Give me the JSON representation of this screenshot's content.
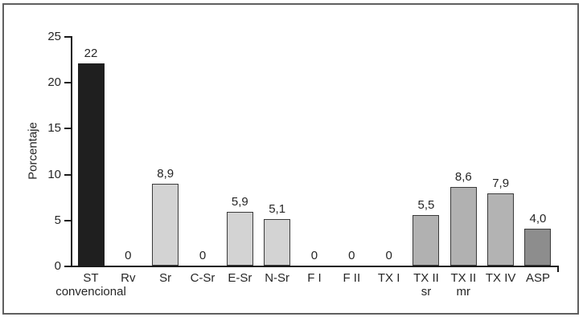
{
  "figure": {
    "background_color": "#ffffff",
    "frame_border_color": "#5f5f5f",
    "axis_color": "#1a1a1a",
    "text_color": "#262626"
  },
  "chart_data": {
    "type": "bar",
    "title": "",
    "xlabel": "",
    "ylabel": "Porcentaje",
    "ylim": [
      0,
      25
    ],
    "yticks": [
      "0",
      "5",
      "10",
      "15",
      "20",
      "25"
    ],
    "ytick_values": [
      0,
      5,
      10,
      15,
      20,
      25
    ],
    "grid": false,
    "legend_position": "none",
    "decimal_separator": ",",
    "categories": [
      {
        "label_lines": [
          "ST",
          "convencional"
        ],
        "value": 22,
        "value_label": "22",
        "fill": "#1f1f1f",
        "border": "#1f1f1f"
      },
      {
        "label_lines": [
          "Rv"
        ],
        "value": 0,
        "value_label": "0",
        "fill": null,
        "border": null
      },
      {
        "label_lines": [
          "Sr"
        ],
        "value": 8.9,
        "value_label": "8,9",
        "fill": "#d3d3d3",
        "border": "#3b3b3b"
      },
      {
        "label_lines": [
          "C-Sr"
        ],
        "value": 0,
        "value_label": "0",
        "fill": null,
        "border": null
      },
      {
        "label_lines": [
          "E-Sr"
        ],
        "value": 5.9,
        "value_label": "5,9",
        "fill": "#d3d3d3",
        "border": "#3b3b3b"
      },
      {
        "label_lines": [
          "N-Sr"
        ],
        "value": 5.1,
        "value_label": "5,1",
        "fill": "#d3d3d3",
        "border": "#3b3b3b"
      },
      {
        "label_lines": [
          "F I"
        ],
        "value": 0,
        "value_label": "0",
        "fill": null,
        "border": null
      },
      {
        "label_lines": [
          "F II"
        ],
        "value": 0,
        "value_label": "0",
        "fill": null,
        "border": null
      },
      {
        "label_lines": [
          "TX I"
        ],
        "value": 0,
        "value_label": "0",
        "fill": null,
        "border": null
      },
      {
        "label_lines": [
          "TX II",
          "sr"
        ],
        "value": 5.5,
        "value_label": "5,5",
        "fill": "#b1b1b1",
        "border": "#3b3b3b"
      },
      {
        "label_lines": [
          "TX II",
          "mr"
        ],
        "value": 8.6,
        "value_label": "8,6",
        "fill": "#b1b1b1",
        "border": "#3b3b3b"
      },
      {
        "label_lines": [
          "TX IV"
        ],
        "value": 7.9,
        "value_label": "7,9",
        "fill": "#b3b3b3",
        "border": "#3b3b3b"
      },
      {
        "label_lines": [
          "ASP"
        ],
        "value": 4,
        "value_label": "4,0",
        "fill": "#8d8d8d",
        "border": "#3b3b3b"
      }
    ]
  }
}
